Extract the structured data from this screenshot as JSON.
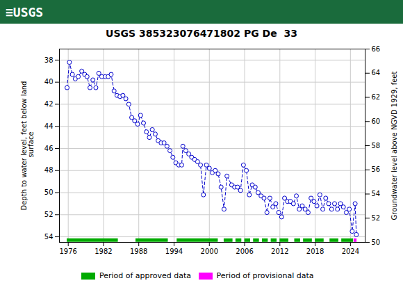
{
  "chart_data": {
    "type": "line",
    "title": "USGS 385323076471802 PG De  33",
    "annotations": [
      {
        "text": "≡USGS",
        "background": "#1a6b3c"
      }
    ],
    "ylabel": "Depth to water level, feet below land\n surface",
    "y2label": "Groundwater level above NGVD 1929, feet",
    "x": [
      1975.8,
      1976.2,
      1976.7,
      1977.2,
      1977.7,
      1978.3,
      1978.8,
      1979.2,
      1979.7,
      1980.2,
      1980.7,
      1981.2,
      1981.7,
      1982.3,
      1982.8,
      1983.3,
      1983.8,
      1984.3,
      1984.8,
      1985.3,
      1985.8,
      1986.3,
      1986.8,
      1987.3,
      1987.8,
      1988.3,
      1988.8,
      1989.3,
      1989.8,
      1990.3,
      1990.8,
      1991.3,
      1991.8,
      1992.3,
      1992.8,
      1993.3,
      1993.8,
      1994.3,
      1994.8,
      1995.3,
      1995.5,
      1996.0,
      1996.5,
      1997.0,
      1997.5,
      1998.0,
      1998.5,
      1999.0,
      1999.5,
      2000.0,
      2000.5,
      2001.0,
      2001.5,
      2002.0,
      2002.5,
      2003.0,
      2003.8,
      2004.3,
      2004.8,
      2005.3,
      2005.8,
      2006.3,
      2006.8,
      2007.3,
      2007.8,
      2008.3,
      2008.8,
      2009.3,
      2009.8,
      2010.3,
      2010.8,
      2011.3,
      2011.8,
      2012.3,
      2012.8,
      2013.3,
      2013.8,
      2014.3,
      2014.8,
      2015.3,
      2015.8,
      2016.3,
      2016.8,
      2017.3,
      2017.8,
      2018.3,
      2018.8,
      2019.3,
      2019.8,
      2020.3,
      2020.8,
      2021.3,
      2021.8,
      2022.3,
      2022.8,
      2023.3,
      2023.8,
      2024.3,
      2024.8,
      2025.0
    ],
    "values": [
      40.5,
      38.2,
      39.3,
      39.7,
      39.5,
      39.0,
      39.3,
      39.5,
      40.5,
      39.8,
      40.5,
      39.2,
      39.5,
      39.5,
      39.5,
      39.3,
      40.8,
      41.2,
      41.3,
      41.2,
      41.5,
      42.0,
      43.2,
      43.5,
      43.8,
      43.0,
      43.7,
      44.5,
      45.0,
      44.3,
      44.7,
      45.3,
      45.5,
      45.5,
      45.8,
      46.2,
      46.8,
      47.3,
      47.5,
      47.5,
      45.8,
      46.2,
      46.5,
      46.8,
      47.0,
      47.2,
      47.5,
      50.2,
      47.5,
      47.8,
      48.2,
      48.0,
      48.3,
      49.5,
      51.5,
      48.5,
      49.3,
      49.5,
      49.5,
      49.8,
      47.5,
      48.0,
      50.2,
      49.3,
      49.5,
      50.0,
      50.3,
      50.5,
      51.8,
      50.5,
      51.3,
      51.0,
      51.8,
      52.2,
      50.5,
      50.8,
      50.8,
      51.0,
      50.3,
      51.5,
      51.2,
      51.5,
      51.8,
      50.5,
      50.8,
      51.2,
      50.2,
      51.5,
      50.5,
      51.0,
      51.5,
      51.0,
      51.5,
      51.0,
      51.3,
      51.8,
      51.5,
      53.5,
      51.0,
      53.8
    ],
    "color": "#0000cc",
    "marker": "circle",
    "line_style": "dashed",
    "xlim": [
      1974.5,
      2026.5
    ],
    "xticks": [
      1976,
      1982,
      1988,
      1994,
      2000,
      2006,
      2012,
      2018,
      2024
    ],
    "ylim": [
      54.5,
      37.0
    ],
    "yticks": [
      38,
      40,
      42,
      44,
      46,
      48,
      50,
      52,
      54
    ],
    "y2lim": [
      50,
      66
    ],
    "y2ticks": [
      50,
      52,
      54,
      56,
      58,
      60,
      62,
      64,
      66
    ],
    "grid": true,
    "legend": "bottom",
    "periods": [
      {
        "name": "Period of approved data",
        "color": "#00aa00",
        "y": 54.3,
        "segments": [
          [
            1975.8,
            1984.5
          ],
          [
            1987.5,
            1993.0
          ],
          [
            1994.5,
            2001.5
          ],
          [
            2002.5,
            2004.0
          ],
          [
            2004.5,
            2005.5
          ],
          [
            2006.0,
            2007.0
          ],
          [
            2007.5,
            2008.5
          ],
          [
            2009.0,
            2010.0
          ],
          [
            2010.5,
            2011.5
          ],
          [
            2012.0,
            2013.5
          ],
          [
            2014.5,
            2015.5
          ],
          [
            2016.0,
            2017.5
          ],
          [
            2018.0,
            2019.5
          ],
          [
            2020.5,
            2022.0
          ],
          [
            2022.5,
            2024.5
          ]
        ]
      },
      {
        "name": "Period of provisional data",
        "color": "#ff00ff",
        "y": 54.3,
        "segments": [
          [
            2024.6,
            2025.1
          ]
        ]
      }
    ]
  }
}
